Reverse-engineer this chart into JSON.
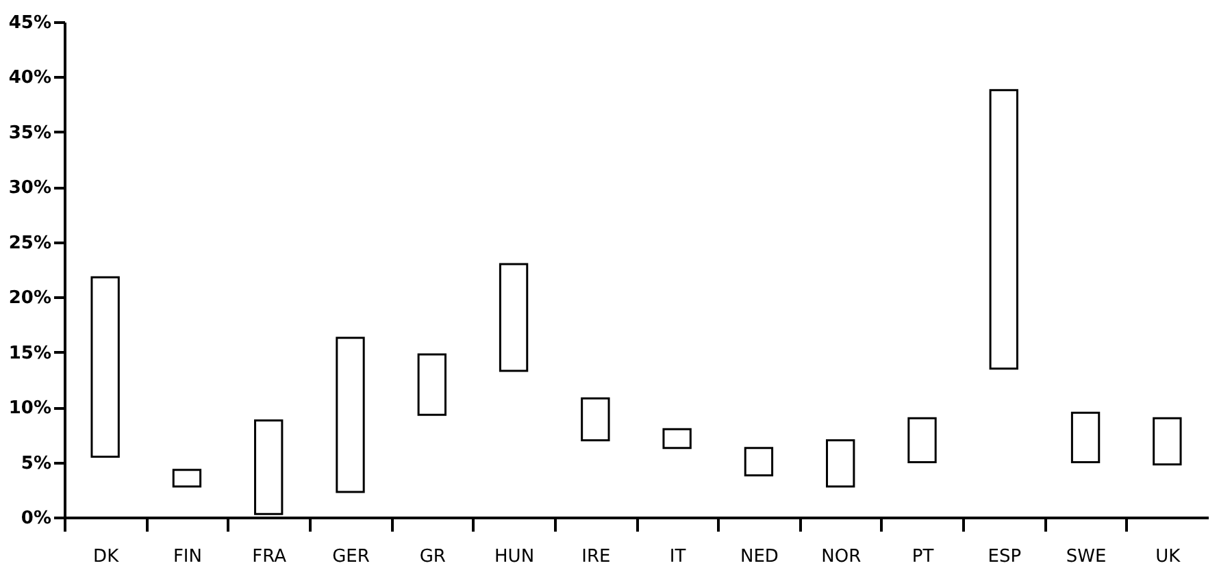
{
  "chart_data": {
    "type": "bar",
    "categories": [
      "DK",
      "FIN",
      "FRA",
      "GER",
      "GR",
      "HUN",
      "IRE",
      "IT",
      "NED",
      "NOR",
      "PT",
      "ESP",
      "SWE",
      "UK"
    ],
    "base": [
      5.5,
      2.8,
      0.3,
      2.3,
      9.3,
      13.3,
      7.0,
      6.3,
      3.8,
      2.8,
      5.0,
      13.5,
      5.0,
      4.8
    ],
    "values": [
      16.3,
      1.5,
      8.5,
      14.0,
      5.5,
      9.7,
      3.8,
      1.7,
      2.5,
      4.2,
      4.0,
      25.3,
      4.5,
      4.2
    ],
    "color": "#ffffff",
    "ylim": [
      0,
      45
    ],
    "yticks": [
      {
        "value": 0,
        "label": "0%"
      },
      {
        "value": 5,
        "label": "5%"
      },
      {
        "value": 10,
        "label": "10%"
      },
      {
        "value": 15,
        "label": "15%"
      },
      {
        "value": 20,
        "label": "20%"
      },
      {
        "value": 25,
        "label": "25%"
      },
      {
        "value": 30,
        "label": "30%"
      },
      {
        "value": 35,
        "label": "35%"
      },
      {
        "value": 40,
        "label": "40%"
      },
      {
        "value": 45,
        "label": "45%"
      }
    ],
    "grid": false
  }
}
